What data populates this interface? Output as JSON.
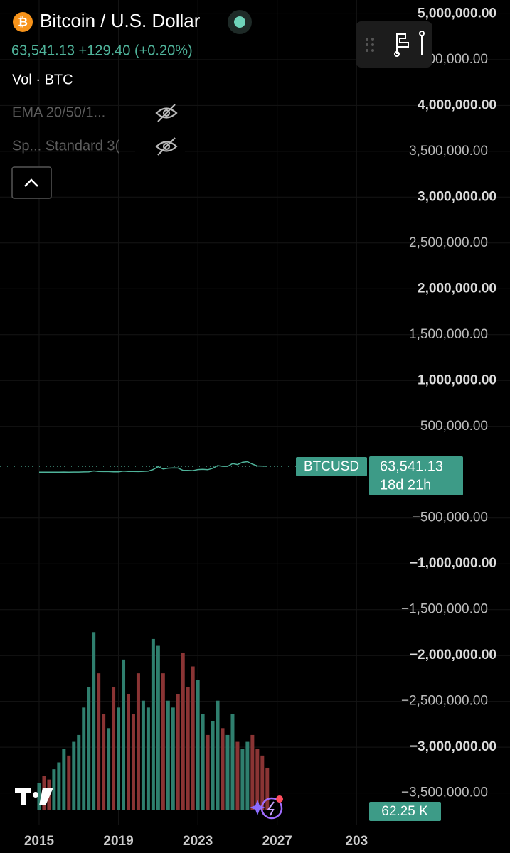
{
  "header": {
    "title": "Bitcoin / U.S. Dollar",
    "quote": "63,541.13 +129.40 (+0.20%)",
    "indicators": [
      "EMA 20/50/1...",
      "Sp... Standard 3("
    ]
  },
  "chart_data": {
    "type": "line",
    "x": [
      2015,
      2015.25,
      2015.5,
      2015.75,
      2016,
      2016.25,
      2016.5,
      2016.75,
      2017,
      2017.25,
      2017.5,
      2017.75,
      2018,
      2018.25,
      2018.5,
      2018.75,
      2019,
      2019.25,
      2019.5,
      2019.75,
      2020,
      2020.25,
      2020.5,
      2020.75,
      2021,
      2021.25,
      2021.5,
      2021.75,
      2022,
      2022.25,
      2022.5,
      2022.75,
      2023,
      2023.25,
      2023.5,
      2023.75,
      2024,
      2024.25,
      2024.5,
      2024.75,
      2025,
      2025.25,
      2025.5,
      2025.75,
      2026,
      2026.25,
      2026.5
    ],
    "series": [
      {
        "name": "BTCUSD",
        "color": "#4fb39a",
        "values": [
          250,
          240,
          230,
          400,
          420,
          670,
          610,
          960,
          1070,
          2480,
          4300,
          13800,
          6900,
          6400,
          6600,
          3700,
          4100,
          10800,
          8300,
          7200,
          6400,
          9100,
          10800,
          29000,
          58800,
          35000,
          43800,
          46300,
          45500,
          19900,
          19400,
          16500,
          28500,
          30500,
          27000,
          42300,
          71300,
          62700,
          63300,
          93400,
          82500,
          107000,
          114000,
          87000,
          68000,
          66000,
          63541.13
        ]
      },
      {
        "name": "Vol · BTC",
        "up_color": "#2f7f6e",
        "down_color": "#8a3434",
        "values": [
          40,
          50,
          45,
          60,
          70,
          90,
          80,
          100,
          110,
          150,
          180,
          260,
          200,
          140,
          120,
          180,
          150,
          220,
          170,
          140,
          200,
          160,
          150,
          250,
          240,
          200,
          160,
          150,
          170,
          230,
          180,
          210,
          190,
          140,
          110,
          130,
          160,
          120,
          110,
          140,
          100,
          90,
          100,
          110,
          90,
          80,
          62.25
        ],
        "ylim": [
          0,
          280
        ]
      }
    ],
    "xlim": [
      2013.03,
      2031.49
    ],
    "xticks": [
      2015,
      2019,
      2023,
      2027,
      {
        "value": 2031,
        "label": "203"
      }
    ],
    "ylim": [
      -3650000,
      5150000
    ],
    "yticks": [
      {
        "value": 5000000,
        "label": "5,000,000.00"
      },
      {
        "value": 4500000,
        "label": "4,500,000.00"
      },
      {
        "value": 4000000,
        "label": "4,000,000.00"
      },
      {
        "value": 3500000,
        "label": "3,500,000.00"
      },
      {
        "value": 3000000,
        "label": "3,000,000.00"
      },
      {
        "value": 2500000,
        "label": "2,500,000.00"
      },
      {
        "value": 2000000,
        "label": "2,000,000.00"
      },
      {
        "value": 1500000,
        "label": "1,500,000.00"
      },
      {
        "value": 1000000,
        "label": "1,000,000.00"
      },
      {
        "value": 500000,
        "label": "500,000.00"
      },
      {
        "value": -500000,
        "label": "−500,000.00"
      },
      {
        "value": -1000000,
        "label": "−1,000,000.00"
      },
      {
        "value": -1500000,
        "label": "−1,500,000.00"
      },
      {
        "value": -2000000,
        "label": "−2,000,000.00"
      },
      {
        "value": -2500000,
        "label": "−2,500,000.00"
      },
      {
        "value": -3000000,
        "label": "−3,000,000.00"
      },
      {
        "value": -3500000,
        "label": "−3,500,000.00"
      }
    ],
    "grid": true,
    "price_badge": {
      "price": "63,541.13",
      "countdown": "18d 21h"
    },
    "volume_badge": "62.25 K"
  }
}
